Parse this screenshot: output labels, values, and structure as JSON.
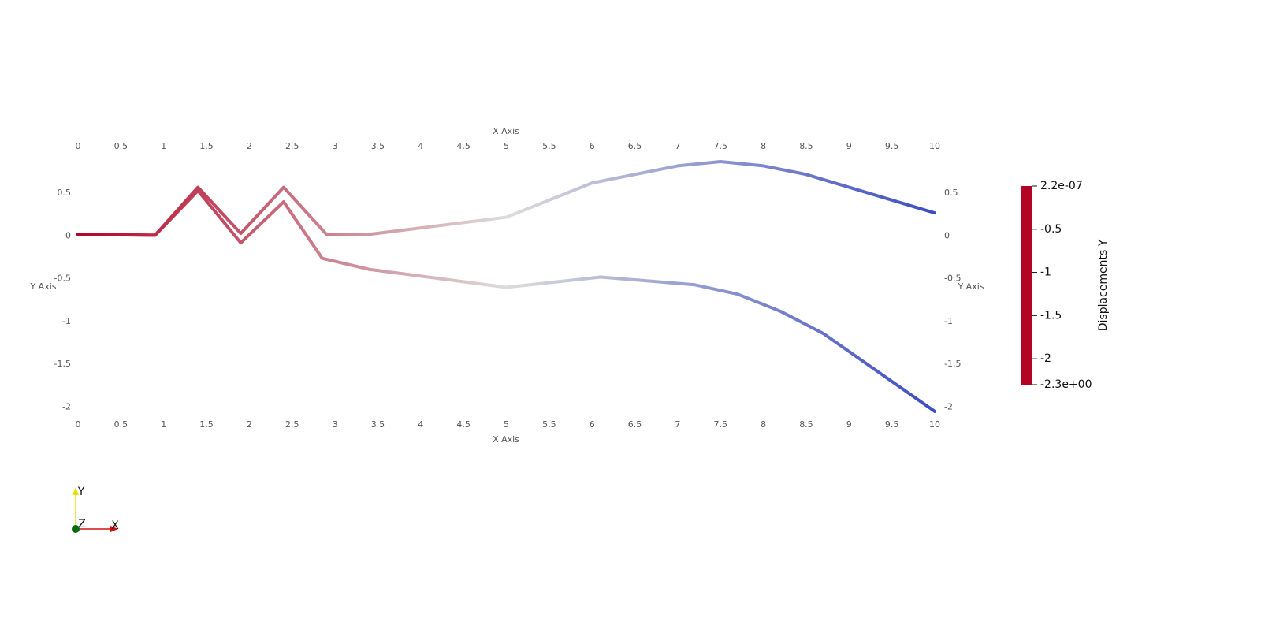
{
  "chart_data": {
    "type": "line",
    "x_label": "X Axis",
    "y_label": "Y Axis",
    "xlim": [
      0,
      10
    ],
    "ylim": [
      -2.06,
      0.87
    ],
    "xticks": [
      0,
      0.5,
      1,
      1.5,
      2,
      2.5,
      3,
      3.5,
      4,
      4.5,
      5,
      5.5,
      6,
      6.5,
      7,
      7.5,
      8,
      8.5,
      9,
      9.5,
      10
    ],
    "yticks": [
      0.5,
      0,
      -0.5,
      -1,
      -1.5,
      -2
    ],
    "series": [
      {
        "x": [
          0,
          0.9,
          1.4,
          1.9,
          2.4,
          2.9,
          3.4,
          5,
          6,
          7,
          7.5,
          8,
          8.5,
          10
        ],
        "values": [
          0.02,
          0.01,
          0.57,
          0.03,
          0.57,
          0.02,
          0.02,
          0.22,
          0.62,
          0.82,
          0.87,
          0.82,
          0.72,
          0.27
        ]
      },
      {
        "x": [
          0,
          0.9,
          1.4,
          1.9,
          2.4,
          2.85,
          3.4,
          5,
          6.1,
          7.2,
          7.7,
          8.2,
          8.7,
          10
        ],
        "values": [
          0.02,
          0.01,
          0.53,
          -0.08,
          0.4,
          -0.26,
          -0.39,
          -0.6,
          -0.48,
          -0.57,
          -0.68,
          -0.88,
          -1.14,
          -2.05
        ]
      }
    ],
    "colormap": [
      "#b40426",
      "#dddcdc",
      "#3b4cc0"
    ],
    "colorbar": {
      "title": "Displacements Y",
      "range": [
        -2.3,
        2.2e-07
      ],
      "ticks": [
        {
          "value": 2.2e-07,
          "label": "2.2e-07"
        },
        -0.5,
        -1,
        -1.5,
        -2,
        {
          "value": -2.3,
          "label": "-2.3e+00"
        }
      ]
    },
    "orientation_axes": [
      "X",
      "Y",
      "Z"
    ]
  }
}
